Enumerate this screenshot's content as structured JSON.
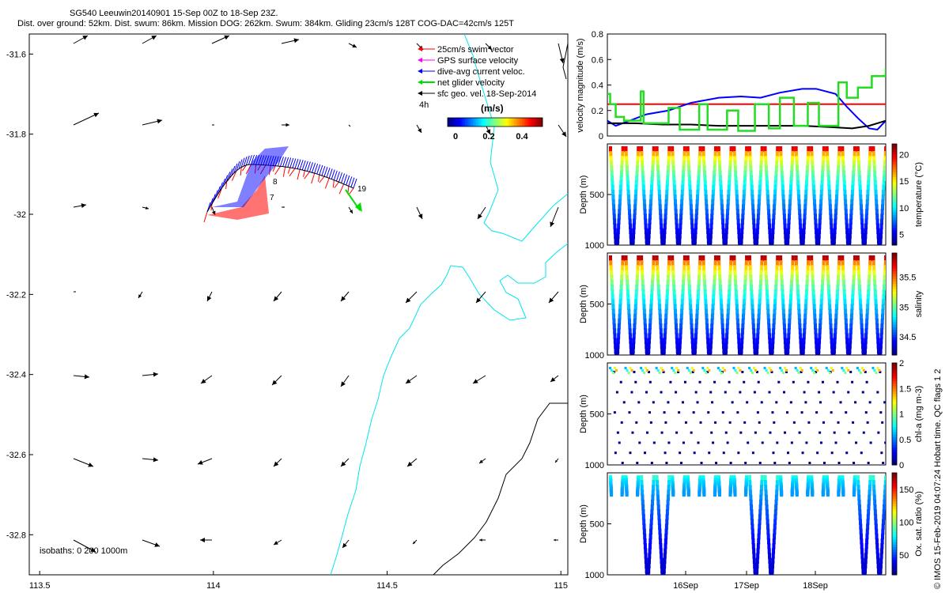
{
  "header": {
    "line1": "SG540 Leeuwin20140901 15-Sep 00Z to 18-Sep 23Z.",
    "line2": "Dist. over ground: 52km. Dist. swum: 86km. Mission DOG: 262km. Swum: 384km. Gliding 23cm/s 128T COG-DAC=42cm/s 125T"
  },
  "credit": "© IMOS 15-Feb-2019 04:07:24 Hobart time. QC flags 1  2",
  "colors": {
    "swim": "#ff0000",
    "gps": "#ff00ff",
    "dac": "#0000ff",
    "net": "#00dd00",
    "geo": "#000000",
    "coast": "#00e5ee"
  },
  "map": {
    "xlim": [
      113.47,
      115.02
    ],
    "ylim": [
      -32.9,
      -31.55
    ],
    "xticks": [
      "113.5",
      "114",
      "114.5",
      "115"
    ],
    "yticks": [
      "-31.6",
      "-31.8",
      "-32",
      "-32.2",
      "-32.4",
      "-32.6",
      "-32.8"
    ],
    "legend": {
      "items": [
        "25cm/s swim vector",
        "GPS surface velocity",
        "dive-avg current veloc.",
        "net glider velocity",
        "sfc geo. vel. 18-Sep-2014"
      ],
      "interval": "4h",
      "units": "(m/s)",
      "colorbar_ticks": [
        "0",
        "0.2",
        "0.4"
      ]
    },
    "track_labels": [
      "8",
      "7",
      "19"
    ],
    "isobath_note": "isobaths: 0   200  1000m"
  },
  "chart_data": [
    {
      "type": "line",
      "ylabel": "velocity magnitude (m/s)",
      "ylim": [
        0,
        0.8
      ],
      "yticks": [
        "0",
        "0.2",
        "0.4",
        "0.6",
        "0.8"
      ],
      "series": [
        {
          "color": "#ff0000",
          "x": [
            0,
            1
          ],
          "y": [
            0.25,
            0.25
          ]
        },
        {
          "color": "#0000ff",
          "x": [
            0,
            0.03,
            0.08,
            0.14,
            0.22,
            0.3,
            0.4,
            0.48,
            0.55,
            0.62,
            0.7,
            0.75,
            0.82,
            0.86,
            0.9,
            0.94,
            0.97,
            1.0
          ],
          "y": [
            0.12,
            0.08,
            0.12,
            0.17,
            0.2,
            0.26,
            0.3,
            0.31,
            0.3,
            0.34,
            0.37,
            0.37,
            0.33,
            0.23,
            0.14,
            0.06,
            0.05,
            0.12
          ]
        },
        {
          "color": "#000000",
          "x": [
            0,
            0.1,
            0.2,
            0.3,
            0.4,
            0.5,
            0.6,
            0.7,
            0.8,
            0.88,
            0.94,
            1.0
          ],
          "y": [
            0.1,
            0.1,
            0.09,
            0.09,
            0.08,
            0.08,
            0.08,
            0.08,
            0.07,
            0.06,
            0.08,
            0.12
          ]
        },
        {
          "color": "#22dd22",
          "x": [
            0,
            0.01,
            0.01,
            0.03,
            0.03,
            0.06,
            0.06,
            0.1,
            0.12,
            0.12,
            0.13,
            0.13,
            0.2,
            0.22,
            0.22,
            0.26,
            0.26,
            0.3,
            0.33,
            0.33,
            0.36,
            0.36,
            0.4,
            0.43,
            0.43,
            0.47,
            0.47,
            0.53,
            0.53,
            0.58,
            0.58,
            0.62,
            0.62,
            0.67,
            0.67,
            0.72,
            0.72,
            0.76,
            0.76,
            0.8,
            0.83,
            0.83,
            0.86,
            0.86,
            0.9,
            0.9,
            0.95,
            0.95,
            1.0,
            1.0
          ],
          "y": [
            0.33,
            0.33,
            0.25,
            0.25,
            0.15,
            0.15,
            0.12,
            0.12,
            0.12,
            0.35,
            0.35,
            0.1,
            0.1,
            0.1,
            0.22,
            0.22,
            0.05,
            0.05,
            0.05,
            0.25,
            0.25,
            0.05,
            0.05,
            0.05,
            0.2,
            0.2,
            0.04,
            0.04,
            0.25,
            0.25,
            0.06,
            0.06,
            0.3,
            0.3,
            0.08,
            0.08,
            0.26,
            0.26,
            0.08,
            0.08,
            0.08,
            0.42,
            0.42,
            0.3,
            0.3,
            0.38,
            0.38,
            0.47,
            0.47,
            0.53
          ]
        }
      ]
    },
    {
      "type": "scatter",
      "ylabel": "Depth (m)",
      "colorbar_label": "temperature (°C)",
      "colorbar_ticks": [
        "5",
        "10",
        "15",
        "20"
      ],
      "clim": [
        3,
        22
      ],
      "yticks": [
        "500",
        "1000"
      ],
      "top_value": 20,
      "bottom_value": 4
    },
    {
      "type": "scatter",
      "ylabel": "Depth (m)",
      "colorbar_label": "salinity",
      "colorbar_ticks": [
        "34.5",
        "35",
        "35.5"
      ],
      "clim": [
        34.2,
        35.9
      ],
      "yticks": [
        "500",
        "1000"
      ],
      "top_value": 35.8,
      "bottom_value": 34.3
    },
    {
      "type": "scatter",
      "ylabel": "Depth (m)",
      "colorbar_label": "chl-a (mg m-3)",
      "colorbar_ticks": [
        "0",
        "0.5",
        "1",
        "1.5",
        "2"
      ],
      "clim": [
        0,
        2
      ],
      "yticks": [
        "500",
        "1000"
      ],
      "top_value": 0.6,
      "bottom_value": 0
    },
    {
      "type": "scatter",
      "ylabel": "Depth (m)",
      "colorbar_label": "Ox. sat. ratio (%)",
      "colorbar_ticks": [
        "50",
        "100",
        "150"
      ],
      "clim": [
        20,
        175
      ],
      "yticks": [
        "500",
        "1000"
      ],
      "top_value": 85,
      "bottom_value": 30,
      "xticks": [
        "16Sep",
        "17Sep",
        "18Sep"
      ]
    }
  ]
}
